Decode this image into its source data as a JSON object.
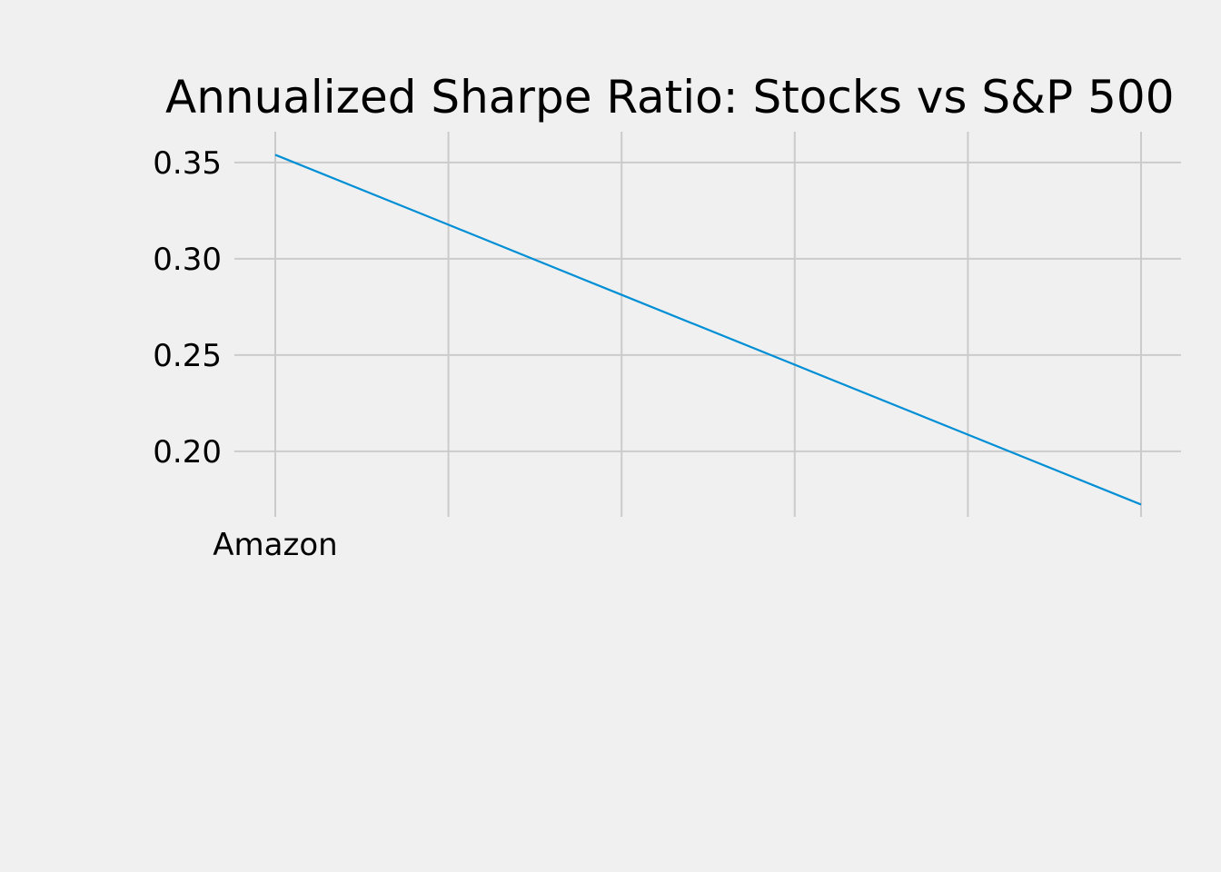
{
  "chart_data": {
    "type": "line",
    "title": "Annualized Sharpe Ratio: Stocks vs S&P 500",
    "xlabel": "",
    "ylabel": "",
    "categories": [
      "Amazon",
      "",
      "",
      "",
      "",
      ""
    ],
    "x": [
      0,
      1,
      2,
      3,
      4,
      5
    ],
    "series": [
      {
        "values": [
          0.354,
          0.3177,
          0.2813,
          0.245,
          0.2087,
          0.1724
        ]
      }
    ],
    "ylim": [
      0.166,
      0.366
    ],
    "yticks": [
      0.2,
      0.25,
      0.3,
      0.35
    ],
    "ytick_labels": [
      "0.20",
      "0.25",
      "0.30",
      "0.35"
    ],
    "grid": true,
    "colors": {
      "series": "#008fd5",
      "grid": "#cbcbcb",
      "background": "#f0f0f0",
      "text": "#000000"
    }
  }
}
